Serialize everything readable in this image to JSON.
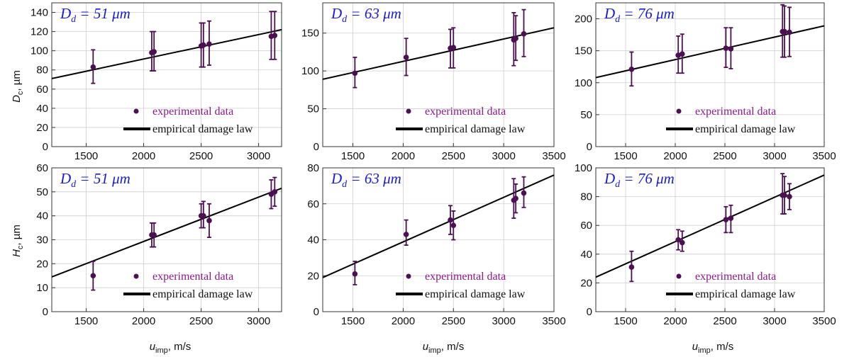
{
  "figure": {
    "x_axis_label_main": "u",
    "x_axis_label_sub": "imp",
    "x_axis_label_unit": ", m/s",
    "y_axis_label_top_main": "D",
    "y_axis_label_top_sub": "c",
    "y_axis_label_top_unit": ", µm",
    "y_axis_label_bottom_main": "H",
    "y_axis_label_bottom_sub": "c",
    "y_axis_label_bottom_unit": ", µm",
    "legend_experimental": "experimental data",
    "legend_law": "empirical damage law",
    "colors": {
      "points": "#4a1050",
      "legend_experimental_text": "#8b1a8b",
      "line": "#000000",
      "title": "#1a1ad6"
    }
  },
  "chart_data": [
    {
      "type": "scatter",
      "panel": "top-left",
      "title_main": "D",
      "title_sub": "d",
      "title_rest": " = 51 μm",
      "xlabel": "",
      "ylabel": "Dc, µm",
      "xlim": [
        1200,
        3200
      ],
      "ylim": [
        0,
        150
      ],
      "xticks": [
        1500,
        2000,
        2500,
        3000
      ],
      "yticks": [
        0,
        20,
        40,
        60,
        80,
        100,
        120,
        140
      ],
      "grid": true,
      "legend_position": "bottom-right",
      "series": [
        {
          "name": "experimental data",
          "x": [
            1560,
            2070,
            2090,
            2500,
            2520,
            2570,
            3110,
            3140
          ],
          "y": [
            83,
            98,
            99,
            105,
            106,
            107,
            115,
            116
          ],
          "err_low": [
            66,
            79,
            79,
            83,
            83,
            85,
            91,
            91
          ],
          "err_high": [
            101,
            120,
            120,
            129,
            129,
            131,
            141,
            141
          ]
        },
        {
          "name": "empirical damage law",
          "x": [
            1200,
            3200
          ],
          "y": [
            71,
            122
          ]
        }
      ]
    },
    {
      "type": "scatter",
      "panel": "top-middle",
      "title_main": "D",
      "title_sub": "d",
      "title_rest": " = 63 μm",
      "xlabel": "",
      "ylabel": "",
      "xlim": [
        1200,
        3500
      ],
      "ylim": [
        0,
        190
      ],
      "xticks": [
        1500,
        2000,
        2500,
        3000,
        3500
      ],
      "yticks": [
        0,
        50,
        100,
        150
      ],
      "grid": true,
      "legend_position": "bottom-right",
      "series": [
        {
          "name": "experimental data",
          "x": [
            1520,
            2030,
            2470,
            2500,
            3100,
            3120,
            3200
          ],
          "y": [
            97,
            118,
            130,
            131,
            141,
            143,
            149
          ],
          "err_low": [
            78,
            94,
            104,
            104,
            107,
            114,
            119
          ],
          "err_high": [
            118,
            143,
            155,
            157,
            177,
            173,
            181
          ]
        },
        {
          "name": "empirical damage law",
          "x": [
            1200,
            3500
          ],
          "y": [
            89,
            157
          ]
        }
      ]
    },
    {
      "type": "scatter",
      "panel": "top-right",
      "title_main": "D",
      "title_sub": "d",
      "title_rest": " = 76 μm",
      "xlabel": "",
      "ylabel": "",
      "xlim": [
        1200,
        3500
      ],
      "ylim": [
        0,
        225
      ],
      "xticks": [
        1500,
        2000,
        2500,
        3000,
        3500
      ],
      "yticks": [
        0,
        50,
        100,
        150,
        200
      ],
      "grid": true,
      "legend_position": "bottom-right",
      "series": [
        {
          "name": "experimental data",
          "x": [
            1560,
            2030,
            2070,
            2510,
            2560,
            3080,
            3100,
            3150
          ],
          "y": [
            121,
            143,
            145,
            154,
            153,
            180,
            180,
            179
          ],
          "err_low": [
            95,
            115,
            115,
            124,
            122,
            140,
            140,
            141
          ],
          "err_high": [
            148,
            173,
            176,
            186,
            186,
            222,
            220,
            218
          ]
        },
        {
          "name": "empirical damage law",
          "x": [
            1200,
            3500
          ],
          "y": [
            108,
            189
          ]
        }
      ]
    },
    {
      "type": "scatter",
      "panel": "bottom-left",
      "title_main": "D",
      "title_sub": "d",
      "title_rest": " = 51 μm",
      "xlabel": "uimp, m/s",
      "ylabel": "Hc, µm",
      "xlim": [
        1200,
        3200
      ],
      "ylim": [
        0,
        60
      ],
      "xticks": [
        1500,
        2000,
        2500,
        3000
      ],
      "yticks": [
        0,
        10,
        20,
        30,
        40,
        50,
        60
      ],
      "grid": true,
      "legend_position": "bottom-right",
      "series": [
        {
          "name": "experimental data",
          "x": [
            1560,
            2070,
            2090,
            2500,
            2520,
            2570,
            3110,
            3140
          ],
          "y": [
            15,
            32,
            32,
            40,
            40,
            38,
            49,
            50
          ],
          "err_low": [
            9,
            27,
            27,
            35,
            35,
            31,
            43,
            44
          ],
          "err_high": [
            21,
            37,
            37,
            45,
            46,
            45,
            55,
            56
          ]
        },
        {
          "name": "empirical damage law",
          "x": [
            1200,
            3200
          ],
          "y": [
            14.5,
            51.5
          ]
        }
      ]
    },
    {
      "type": "scatter",
      "panel": "bottom-middle",
      "title_main": "D",
      "title_sub": "d",
      "title_rest": " = 63 μm",
      "xlabel": "uimp, m/s",
      "ylabel": "",
      "xlim": [
        1200,
        3500
      ],
      "ylim": [
        0,
        80
      ],
      "xticks": [
        1500,
        2000,
        2500,
        3000,
        3500
      ],
      "yticks": [
        0,
        20,
        40,
        60,
        80
      ],
      "grid": true,
      "legend_position": "bottom-right",
      "series": [
        {
          "name": "experimental data",
          "x": [
            1520,
            2030,
            2470,
            2500,
            3100,
            3120,
            3200
          ],
          "y": [
            21,
            43,
            51,
            48,
            62,
            63,
            66
          ],
          "err_low": [
            15,
            37,
            43,
            40,
            52,
            55,
            58
          ],
          "err_high": [
            28,
            51,
            59,
            56,
            74,
            71,
            75
          ]
        },
        {
          "name": "empirical damage law",
          "x": [
            1200,
            3500
          ],
          "y": [
            19,
            76
          ]
        }
      ]
    },
    {
      "type": "scatter",
      "panel": "bottom-right",
      "title_main": "D",
      "title_sub": "d",
      "title_rest": " = 76 μm",
      "xlabel": "uimp, m/s",
      "ylabel": "",
      "xlim": [
        1200,
        3500
      ],
      "ylim": [
        0,
        100
      ],
      "xticks": [
        1500,
        2000,
        2500,
        3000,
        3500
      ],
      "yticks": [
        0,
        20,
        40,
        60,
        80,
        100
      ],
      "grid": true,
      "legend_position": "bottom-right",
      "series": [
        {
          "name": "experimental data",
          "x": [
            1560,
            2030,
            2070,
            2510,
            2560,
            3080,
            3100,
            3150
          ],
          "y": [
            31,
            50,
            48,
            64,
            65,
            81,
            81,
            80
          ],
          "err_low": [
            21,
            43,
            42,
            55,
            55,
            68,
            68,
            71
          ],
          "err_high": [
            42,
            57,
            56,
            73,
            74,
            96,
            94,
            89
          ]
        },
        {
          "name": "empirical damage law",
          "x": [
            1200,
            3500
          ],
          "y": [
            24,
            95
          ]
        }
      ]
    }
  ]
}
